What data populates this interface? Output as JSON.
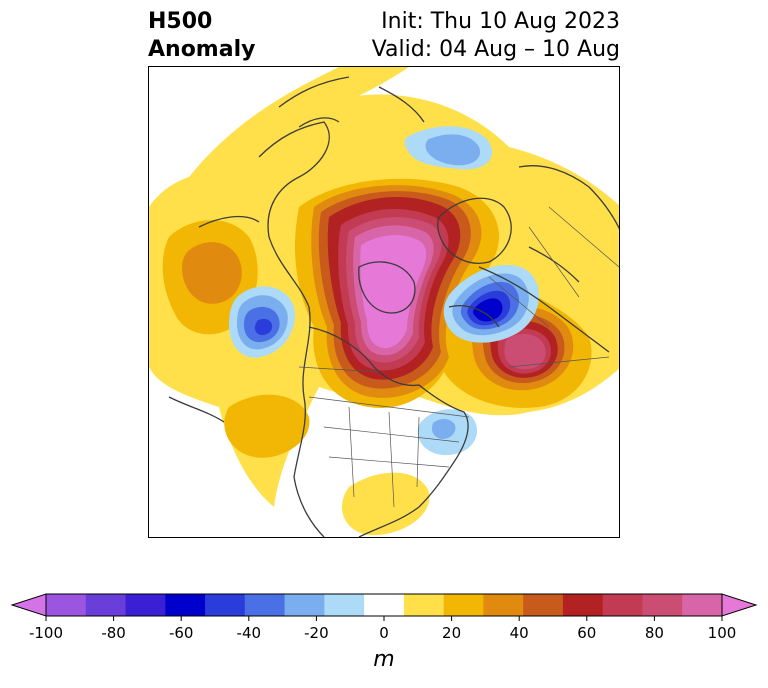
{
  "title": {
    "left_line1": "H500",
    "left_line2": "Anomaly",
    "right_line1": "Init: Thu 10 Aug 2023",
    "right_line2": "Valid: 04 Aug – 10 Aug"
  },
  "map": {
    "projection": "polar stereographic",
    "field": "500 hPa geopotential height anomaly",
    "features": [
      {
        "kind": "positive-anomaly",
        "region": "Arctic / Greenland",
        "peak_m": 95
      },
      {
        "kind": "positive-anomaly",
        "region": "central Canada / Hudson Bay",
        "peak_m": 90
      },
      {
        "kind": "positive-anomaly",
        "region": "North Atlantic / Europe",
        "peak_m": 75
      },
      {
        "kind": "negative-anomaly",
        "region": "Scandinavia",
        "peak_m": -70
      },
      {
        "kind": "negative-anomaly",
        "region": "Bering Sea",
        "peak_m": -50
      },
      {
        "kind": "negative-anomaly",
        "region": "Eastern Siberia",
        "peak_m": -20
      },
      {
        "kind": "negative-anomaly",
        "region": "off US northeast coast",
        "peak_m": -20
      }
    ]
  },
  "colorbar": {
    "label": "m",
    "ticks": [
      "-100",
      "-80",
      "-60",
      "-40",
      "-20",
      "0",
      "20",
      "40",
      "60",
      "80",
      "100"
    ],
    "extend": "both",
    "colors": [
      "#d473e6",
      "#9b55e0",
      "#6a3ed9",
      "#3a1fd4",
      "#0000cc",
      "#2a3ddb",
      "#4b70e6",
      "#7aaeee",
      "#acdaf7",
      "#ffffff",
      "#ffe04a",
      "#f2b705",
      "#e08a10",
      "#c85a1b",
      "#b22222",
      "#c23b52",
      "#cc4d74",
      "#d865a8",
      "#e678d8"
    ]
  }
}
